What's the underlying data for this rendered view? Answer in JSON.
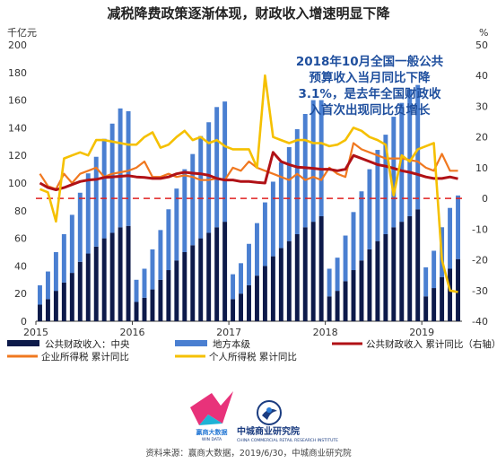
{
  "header": {
    "title": "减税降费政策逐渐体现，财政收入增速明显下降",
    "left_unit": "千亿元",
    "right_unit": "%"
  },
  "annotation": {
    "lines": [
      "2018年10月全国一般公共",
      "预算收入当月同比下降",
      "3.1%，是去年全国财政收",
      "入首次出现同比负增长"
    ]
  },
  "legend": {
    "central": "公共财政收入：中央",
    "local": "地方本级",
    "total_yoy": "公共财政收入 累计同比（右轴）",
    "corp_tax": "企业所得税 累计同比",
    "personal_tax": "个人所得税 累计同比"
  },
  "source": "资料来源：赢商大数据，2019/6/30，中城商业研究院",
  "logos": {
    "winshang_cn": "赢商大数据",
    "winshang_en": "WIN DATA",
    "zc_cn": "中城商业研究院",
    "zc_en": "CHINA COMMERCIAL RETAIL RESEARCH INSTITUTE"
  },
  "colors": {
    "central": "#0d1a4a",
    "local": "#4a7fd1",
    "total_yoy": "#b01116",
    "corp_tax": "#f07820",
    "personal_tax": "#f5c000",
    "zero_line": "#e02020",
    "annotation": "#1f4f9e"
  },
  "chart_data": {
    "type": "bar",
    "stacked": true,
    "left_axis": {
      "label": "千亿元",
      "range": [
        0,
        200
      ],
      "ticks": [
        0,
        20,
        40,
        60,
        80,
        100,
        120,
        140,
        160,
        180,
        200
      ]
    },
    "right_axis": {
      "label": "%",
      "range": [
        -40,
        50
      ],
      "ticks": [
        -40,
        -30,
        -20,
        -10,
        0,
        10,
        20,
        30,
        40,
        50
      ]
    },
    "x_tick_labels": [
      "2015",
      "2016",
      "2017",
      "2018",
      "2019"
    ],
    "periods": [
      "2015-01",
      "2015-02",
      "2015-03",
      "2015-04",
      "2015-05",
      "2015-06",
      "2015-07",
      "2015-08",
      "2015-09",
      "2015-10",
      "2015-11",
      "2015-12",
      "2016-01",
      "2016-02",
      "2016-03",
      "2016-04",
      "2016-05",
      "2016-06",
      "2016-07",
      "2016-08",
      "2016-09",
      "2016-10",
      "2016-11",
      "2016-12",
      "2017-01",
      "2017-02",
      "2017-03",
      "2017-04",
      "2017-05",
      "2017-06",
      "2017-07",
      "2017-08",
      "2017-09",
      "2017-10",
      "2017-11",
      "2017-12",
      "2018-01",
      "2018-02",
      "2018-03",
      "2018-04",
      "2018-05",
      "2018-06",
      "2018-07",
      "2018-08",
      "2018-09",
      "2018-10",
      "2018-11",
      "2018-12",
      "2019-01",
      "2019-02",
      "2019-03",
      "2019-04",
      "2019-05"
    ],
    "series": [
      {
        "name": "公共财政收入：中央",
        "kind": "bar",
        "axis": "left",
        "color": "#0d1a4a",
        "values": [
          12,
          16,
          22,
          28,
          35,
          43,
          49,
          54,
          60,
          64,
          68,
          69,
          14,
          17,
          23,
          30,
          37,
          44,
          50,
          55,
          60,
          64,
          68,
          72,
          16,
          20,
          26,
          33,
          40,
          47,
          53,
          58,
          63,
          68,
          72,
          76,
          18,
          22,
          29,
          37,
          44,
          52,
          58,
          63,
          68,
          72,
          76,
          81,
          18,
          24,
          32,
          38,
          45
        ]
      },
      {
        "name": "地方本级",
        "kind": "bar",
        "axis": "left",
        "color": "#4a7fd1",
        "values": [
          14,
          20,
          28,
          35,
          42,
          50,
          58,
          65,
          72,
          79,
          86,
          83,
          16,
          21,
          29,
          36,
          44,
          52,
          60,
          66,
          74,
          80,
          87,
          87,
          18,
          22,
          30,
          38,
          46,
          54,
          62,
          68,
          76,
          82,
          88,
          84,
          20,
          24,
          33,
          42,
          50,
          58,
          66,
          72,
          80,
          86,
          92,
          90,
          21,
          27,
          36,
          44,
          46
        ]
      },
      {
        "name": "公共财政收入 累计同比（右轴）",
        "kind": "line",
        "axis": "right",
        "color": "#b01116",
        "values": [
          5,
          3.5,
          2.8,
          3.5,
          4.5,
          5.5,
          6,
          6.2,
          6.8,
          7,
          7.2,
          7.4,
          7,
          6.8,
          6.5,
          6.5,
          7,
          8,
          8.5,
          8.2,
          8,
          7.5,
          6.5,
          6,
          6,
          5.5,
          5.5,
          5.2,
          5,
          15,
          12,
          11,
          10.2,
          10,
          9.8,
          9.5,
          9.5,
          9,
          9.5,
          14,
          13,
          12,
          11,
          10.5,
          9.8,
          9,
          8.5,
          7.8,
          7,
          6.5,
          6.5,
          7,
          6.4
        ]
      },
      {
        "name": "企业所得税 累计同比",
        "kind": "line",
        "axis": "right",
        "color": "#f07820",
        "values": [
          8,
          4,
          3,
          8,
          5,
          8,
          9,
          10,
          7,
          8,
          8.5,
          9,
          10,
          12,
          7,
          7,
          8,
          7,
          7.5,
          7,
          6,
          6,
          6.5,
          6,
          10,
          9,
          12,
          10,
          9,
          8,
          7,
          6,
          8,
          6,
          7,
          6,
          10,
          8,
          7,
          18,
          16,
          15,
          14,
          13,
          13,
          13,
          12.5,
          12,
          10,
          9,
          14.5,
          9,
          9
        ]
      },
      {
        "name": "个人所得税 累计同比",
        "kind": "line",
        "axis": "right",
        "color": "#f5c000",
        "values": [
          3,
          2,
          -7.5,
          13,
          14,
          15,
          14,
          19,
          19,
          18.5,
          18,
          17.5,
          17.5,
          20,
          21.5,
          16.5,
          17.5,
          20,
          22,
          19,
          20,
          18,
          19,
          17,
          16,
          16,
          16,
          10,
          40,
          20,
          19,
          18,
          19,
          19,
          18,
          18,
          17,
          17.5,
          19,
          23,
          22,
          20,
          19,
          17.5,
          1,
          14,
          12,
          16,
          17,
          18,
          -20,
          -30,
          -30.5
        ]
      }
    ],
    "reference_line": {
      "axis": "right",
      "value": 0,
      "style": "dashed"
    },
    "legend_position": "bottom"
  }
}
